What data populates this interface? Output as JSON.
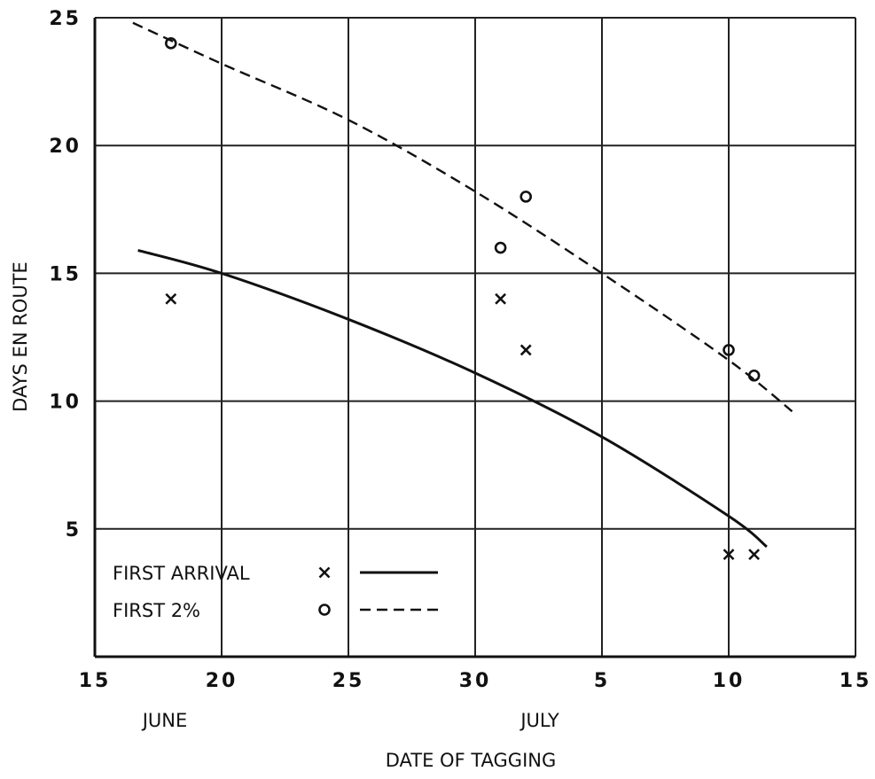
{
  "chart_data": {
    "type": "scatter",
    "title": "",
    "xlabel": "DATE OF TAGGING",
    "ylabel": "DAYS EN ROUTE",
    "x_unit": "date",
    "xlim": [
      "June 15",
      "July 15"
    ],
    "ylim": [
      0,
      25
    ],
    "grid": true,
    "x_ticks": [
      "15",
      "20",
      "25",
      "30",
      "5",
      "10",
      "15"
    ],
    "y_ticks": [
      "5",
      "10",
      "15",
      "20",
      "25"
    ],
    "month_labels": [
      "JUNE",
      "JULY"
    ],
    "legend_position": "bottom-left",
    "series": [
      {
        "name": "FIRST ARRIVAL",
        "marker": "x",
        "line": "solid",
        "points": [
          {
            "x": "June 18",
            "y": 14
          },
          {
            "x": "July 1",
            "y": 14
          },
          {
            "x": "July 2",
            "y": 12
          },
          {
            "x": "July 10",
            "y": 4
          },
          {
            "x": "July 11",
            "y": 4
          }
        ],
        "curve": [
          {
            "x": "June 16.7",
            "y": 15.9
          },
          {
            "x": "June 20",
            "y": 15.0
          },
          {
            "x": "June 25",
            "y": 13.2
          },
          {
            "x": "June 30",
            "y": 11.1
          },
          {
            "x": "July 5",
            "y": 8.6
          },
          {
            "x": "July 10",
            "y": 5.5
          },
          {
            "x": "July 11.5",
            "y": 4.3
          }
        ]
      },
      {
        "name": "FIRST 2%",
        "marker": "o",
        "line": "dashed",
        "points": [
          {
            "x": "June 18",
            "y": 24
          },
          {
            "x": "July 1",
            "y": 16
          },
          {
            "x": "July 2",
            "y": 18
          },
          {
            "x": "July 10",
            "y": 12
          },
          {
            "x": "July 11",
            "y": 11
          }
        ],
        "curve": [
          {
            "x": "June 16.5",
            "y": 24.8
          },
          {
            "x": "June 20",
            "y": 23.2
          },
          {
            "x": "June 25",
            "y": 21.0
          },
          {
            "x": "June 30",
            "y": 18.2
          },
          {
            "x": "July 5",
            "y": 15.0
          },
          {
            "x": "July 10",
            "y": 11.6
          },
          {
            "x": "July 12.5",
            "y": 9.6
          }
        ]
      }
    ]
  }
}
